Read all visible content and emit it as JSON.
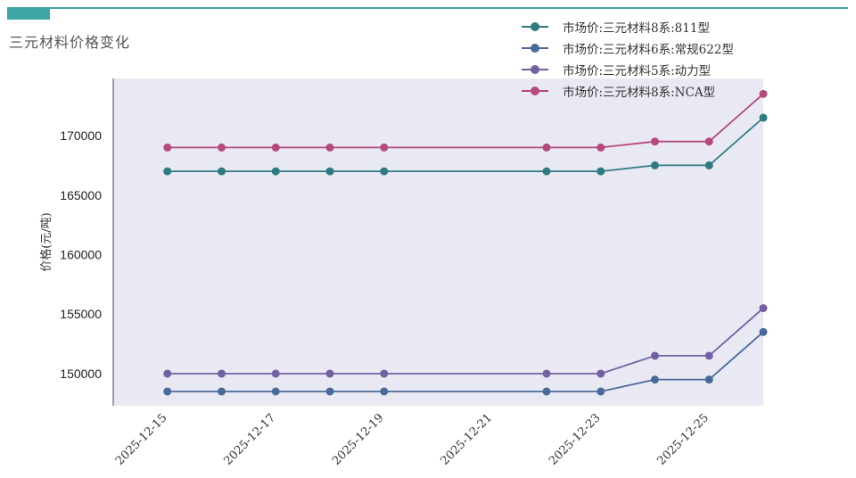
{
  "page": {
    "title": "三元材料价格变化",
    "accent_color": "#3fa6a6"
  },
  "chart_data": {
    "type": "line",
    "ylabel": "价格(元/吨)",
    "x": [
      "2025-12-15",
      "2025-12-16",
      "2025-12-17",
      "2025-12-18",
      "2025-12-19",
      "2025-12-22",
      "2025-12-23",
      "2025-12-24",
      "2025-12-25",
      "2025-12-26"
    ],
    "x_ticks": [
      "2025-12-15",
      "2025-12-17",
      "2025-12-19",
      "2025-12-21",
      "2025-12-23",
      "2025-12-25"
    ],
    "y_ticks": [
      150000,
      155000,
      160000,
      165000,
      170000
    ],
    "ylim": [
      147300,
      174800
    ],
    "xlim": [
      "2025-12-14",
      "2025-12-26"
    ],
    "plot_background": "#e9e9f3",
    "legend_position": "top-right",
    "series": [
      {
        "name": "市场价:三元材料8系:811型",
        "color": "#2e7b82",
        "values": [
          167000,
          167000,
          167000,
          167000,
          167000,
          167000,
          167000,
          167500,
          167500,
          171500
        ]
      },
      {
        "name": "市场价:三元材料6系:常规622型",
        "color": "#4a6a9a",
        "values": [
          148500,
          148500,
          148500,
          148500,
          148500,
          148500,
          148500,
          149500,
          149500,
          153500
        ]
      },
      {
        "name": "市场价:三元材料5系:动力型",
        "color": "#7360a3",
        "values": [
          150000,
          150000,
          150000,
          150000,
          150000,
          150000,
          150000,
          151500,
          151500,
          155500
        ]
      },
      {
        "name": "市场价:三元材料8系:NCA型",
        "color": "#b5497f",
        "values": [
          169000,
          169000,
          169000,
          169000,
          169000,
          169000,
          169000,
          169500,
          169500,
          173500
        ]
      }
    ]
  }
}
